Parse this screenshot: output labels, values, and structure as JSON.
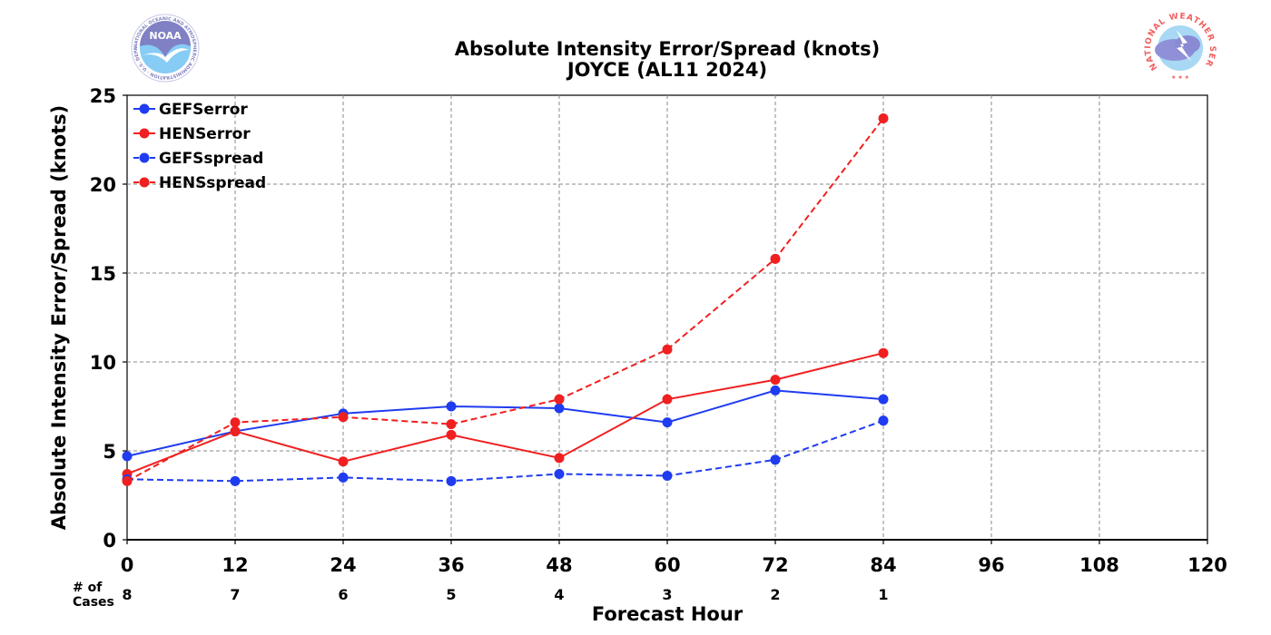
{
  "chart_data": {
    "type": "line",
    "title": "Absolute Intensity Error/Spread (knots)",
    "subtitle": "JOYCE (AL11 2024)",
    "xlabel": "Forecast Hour",
    "ylabel": "Absolute Intensity Error/Spread (knots)",
    "xlim": [
      0,
      120
    ],
    "ylim": [
      0,
      25
    ],
    "xticks": [
      0,
      12,
      24,
      36,
      48,
      60,
      72,
      84,
      96,
      108,
      120
    ],
    "yticks": [
      0,
      5,
      10,
      15,
      20,
      25
    ],
    "grid": true,
    "legend_position": "top-left",
    "cases_label": [
      "# of",
      "Cases"
    ],
    "cases": [
      {
        "x": 0,
        "n": "8"
      },
      {
        "x": 12,
        "n": "7"
      },
      {
        "x": 24,
        "n": "6"
      },
      {
        "x": 36,
        "n": "5"
      },
      {
        "x": 48,
        "n": "4"
      },
      {
        "x": 60,
        "n": "3"
      },
      {
        "x": 72,
        "n": "2"
      },
      {
        "x": 84,
        "n": "1"
      }
    ],
    "x": [
      0,
      12,
      24,
      36,
      48,
      60,
      72,
      84
    ],
    "series": [
      {
        "name": "GEFSerror",
        "color": "#1f3cf0",
        "dash": false,
        "values": [
          4.7,
          6.1,
          7.1,
          7.5,
          7.4,
          6.6,
          8.4,
          7.9
        ]
      },
      {
        "name": "HENSerror",
        "color": "#f02020",
        "dash": false,
        "values": [
          3.7,
          6.1,
          4.4,
          5.9,
          4.6,
          7.9,
          9.0,
          10.5
        ]
      },
      {
        "name": "GEFSspread",
        "color": "#1f3cf0",
        "dash": true,
        "values": [
          3.4,
          3.3,
          3.5,
          3.3,
          3.7,
          3.6,
          4.5,
          6.7
        ]
      },
      {
        "name": "HENSspread",
        "color": "#f02020",
        "dash": true,
        "values": [
          3.3,
          6.6,
          6.9,
          6.5,
          7.9,
          10.7,
          15.8,
          23.7
        ]
      }
    ]
  },
  "logos": {
    "noaa": {
      "label": "NOAA",
      "ring_text": "NATIONAL OCEANIC AND ATMOSPHERIC ADMINISTRATION · U.S. DEPARTMENT OF COMMERCE"
    },
    "nws": {
      "ring_text": "NATIONAL WEATHER SERVICE"
    }
  }
}
